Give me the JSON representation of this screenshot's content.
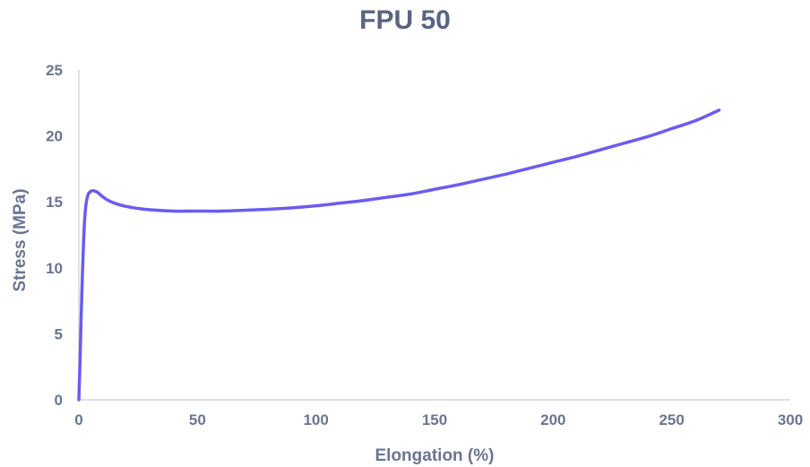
{
  "chart_data": {
    "type": "line",
    "title": "FPU 50",
    "xlabel": "Elongation (%)",
    "ylabel": "Stress (MPa)",
    "xlim": [
      0,
      300
    ],
    "ylim": [
      0,
      25
    ],
    "xticks": [
      "0",
      "50",
      "100",
      "150",
      "200",
      "250",
      "300"
    ],
    "yticks": [
      "0",
      "5",
      "10",
      "15",
      "20",
      "25"
    ],
    "grid": false,
    "legend": "none",
    "series": [
      {
        "color": "#6b5cf0",
        "x": [
          0,
          0.5,
          1,
          1.5,
          2,
          2.5,
          3,
          3.5,
          4,
          5,
          6,
          7,
          8,
          10,
          12,
          15,
          20,
          25,
          30,
          40,
          50,
          60,
          75,
          90,
          100,
          110,
          120,
          130,
          140,
          150,
          160,
          170,
          180,
          190,
          200,
          210,
          220,
          230,
          240,
          250,
          260,
          270
        ],
        "y": [
          0,
          3.0,
          6.5,
          9.5,
          12.0,
          13.8,
          14.8,
          15.3,
          15.6,
          15.8,
          15.85,
          15.8,
          15.7,
          15.4,
          15.15,
          14.9,
          14.65,
          14.5,
          14.4,
          14.3,
          14.3,
          14.3,
          14.4,
          14.55,
          14.7,
          14.9,
          15.1,
          15.35,
          15.6,
          15.95,
          16.3,
          16.7,
          17.1,
          17.55,
          18.0,
          18.45,
          18.95,
          19.45,
          19.95,
          20.55,
          21.15,
          21.95
        ]
      }
    ]
  }
}
